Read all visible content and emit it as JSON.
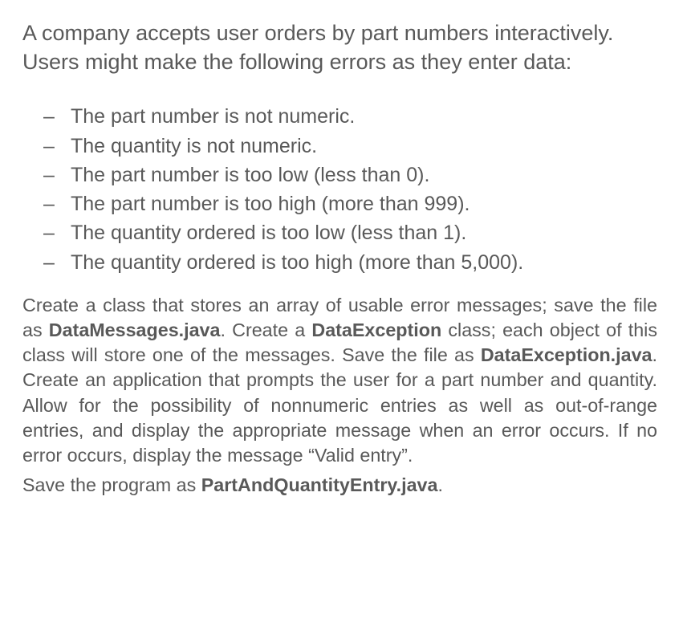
{
  "colors": {
    "text": "#595959",
    "background": "#ffffff"
  },
  "typography": {
    "intro_fontsize": 27,
    "list_fontsize": 25,
    "body_fontsize": 23.3,
    "font_family": "Arial"
  },
  "intro": "A company accepts user orders by part numbers interactively. Users might make the following errors as they enter data:",
  "errors": [
    "The part number is not numeric.",
    "The quantity is not numeric.",
    "The part number is too low (less than 0).",
    "The part number is too high (more than 999).",
    "The quantity ordered is too low (less than 1).",
    "The quantity ordered is too high (more than 5,000)."
  ],
  "instructions": {
    "p1_a": "Create a class that stores an array of usable error messages; save the file as ",
    "file1": "DataMessages.java",
    "p1_b": ". Create a ",
    "class1": "DataException",
    "p1_c": " class; each object of this class will store one of the messages. Save the file as ",
    "file2": "DataException.java",
    "p1_d": ". Create an application that prompts the user for a part number and quantity. Allow for the possibility of nonnumeric entries as well as out-of-range entries, and display the appropriate message when an error occurs. If no error occurs, display the message “Valid entry”."
  },
  "save_line": {
    "prefix": "Save the program as ",
    "file": "PartAndQuantityEntry.java",
    "suffix": "."
  }
}
